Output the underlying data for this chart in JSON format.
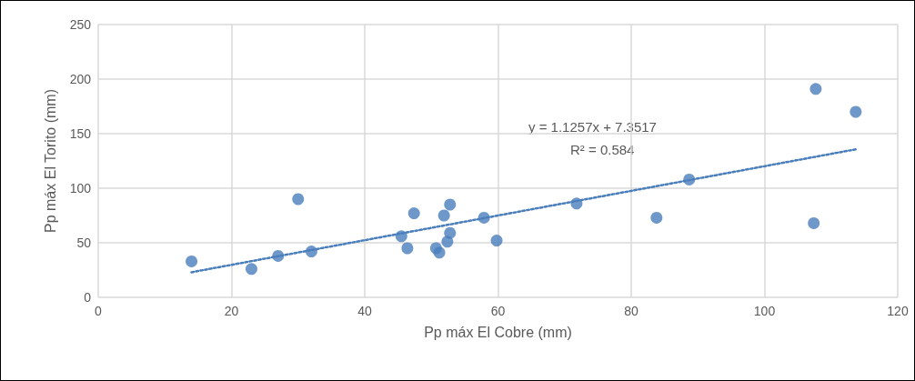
{
  "chart_data": {
    "type": "scatter",
    "xlabel": "Pp máx El Cobre (mm)",
    "ylabel": "Pp máx El Torito (mm)",
    "xlim": [
      0,
      120
    ],
    "xticks": [
      0,
      20,
      40,
      60,
      80,
      100,
      120
    ],
    "ylim": [
      0,
      250
    ],
    "yticks": [
      0,
      50,
      100,
      150,
      200,
      250
    ],
    "grid": true,
    "marker": "circle",
    "annotations": [
      "y = 1.1257x + 7.3517",
      "R² = 0.584"
    ],
    "series": [
      {
        "color": "#4a7ebb",
        "x": [
          14,
          23,
          27,
          30,
          32,
          45.5,
          46.4,
          47.4,
          51.2,
          50.7,
          51.9,
          52.4,
          52.8,
          52.8,
          57.9,
          59.8,
          71.8,
          83.8,
          88.7,
          107.4,
          107.7,
          113.7
        ],
        "values": [
          33,
          26,
          38,
          90,
          42,
          56,
          45,
          77,
          41,
          45,
          75,
          51,
          85,
          59,
          73,
          52,
          86,
          73,
          108,
          68,
          191,
          170
        ]
      },
      {
        "type": "line",
        "color": "#4a7ebb",
        "line_style": "dotted",
        "marker": "none",
        "x": [
          14,
          114
        ],
        "values": [
          23,
          136
        ]
      }
    ]
  }
}
